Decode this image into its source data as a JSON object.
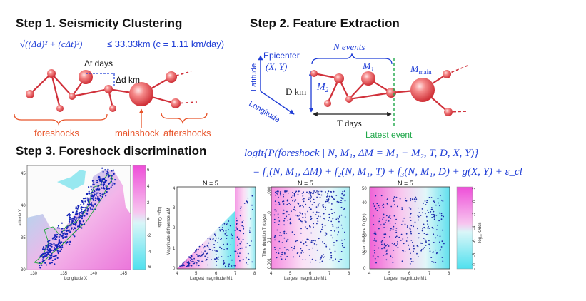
{
  "step1": {
    "title": "Step 1.  Seismicity Clustering",
    "formula_lhs": "√((Δd)² + (cΔt)²)",
    "formula_rhs": "≤ 33.33km  (c = 1.11 km/day)",
    "dt_label": "Δt  days",
    "dd_label": "Δd  km",
    "foreshocks": "foreshocks",
    "mainshock": "mainshock",
    "aftershocks": "aftershocks"
  },
  "step2": {
    "title": "Step 2.  Feature Extraction",
    "epicenter": "Epicenter",
    "xy": "(X, Y)",
    "latitude": "Latitude",
    "longitude": "Longitude",
    "n_events": "N events",
    "d_km": "D km",
    "t_days": "T days",
    "m1": "M",
    "m1_sub": "1",
    "m2": "M",
    "m2_sub": "2",
    "mmain": "M",
    "mmain_sub": "main",
    "latest_event": "Latest event"
  },
  "step3": {
    "title": "Step 3.  Foreshock discrimination",
    "eq_line1": "logit{P(foreshock | N, M₁, ΔM = M₁ − M₂, T, D, X, Y)}",
    "eq_line2": "= f₁(N, M₁, ΔM) + f₂(N, M₁, T) + f₃(N, M₁, D) + g(X, Y) + ε_cl"
  },
  "map_panel": {
    "xlabel": "Longitude X",
    "ylabel": "Latitude Y",
    "xticks": [
      "130",
      "135",
      "140",
      "145"
    ],
    "yticks": [
      "30",
      "35",
      "40",
      "45"
    ],
    "colorbar_label": "log₁₀ Odds",
    "colorbar_ticks": [
      "6",
      "4",
      "2",
      "0",
      "-2",
      "-4",
      "-6"
    ]
  },
  "panels": [
    {
      "title": "N = 5",
      "xlabel": "Largest magnitude M1",
      "ylabel": "Magnitude difference ΔM",
      "xticks": [
        "4",
        "5",
        "6",
        "7",
        "8"
      ],
      "yticks": [
        "0",
        "1",
        "2",
        "3",
        "4"
      ]
    },
    {
      "title": "N = 5",
      "xlabel": "Largest magnitude M1",
      "ylabel": "Time duration T (days)",
      "xticks": [
        "4",
        "5",
        "6",
        "7",
        "8"
      ],
      "yticks": [
        "0.001",
        "0.1",
        "10",
        "1000"
      ]
    },
    {
      "title": "N = 5",
      "xlabel": "Largest magnitude M1",
      "ylabel": "Mean distance D (km)",
      "xticks": [
        "4",
        "5",
        "6",
        "7",
        "8"
      ],
      "yticks": [
        "0",
        "10",
        "20",
        "30",
        "40",
        "50"
      ]
    }
  ],
  "colorbar_right": {
    "label": "log₁₀ Odds",
    "ticks": [
      "2",
      "0",
      "-2",
      "-4",
      "-6",
      "-8",
      "-10"
    ]
  },
  "colors": {
    "accent_blue": "#1f3dd6",
    "orange": "#e8542a",
    "green": "#20a84a",
    "sphere_red": "#e84c4c",
    "magenta": "#ee5fd8",
    "cyan": "#54e0ec"
  }
}
